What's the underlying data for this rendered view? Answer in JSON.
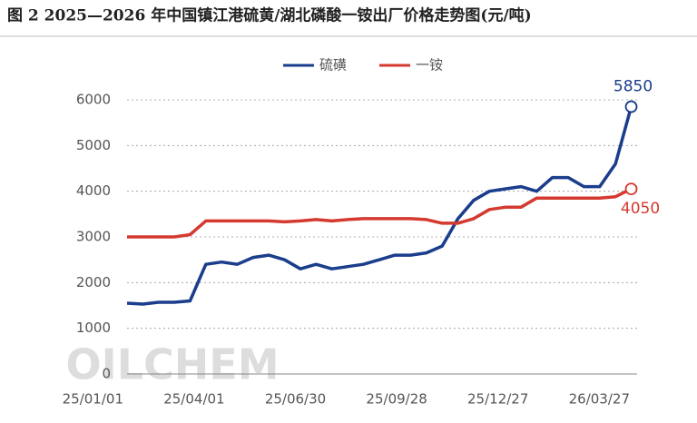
{
  "chart_data": {
    "type": "line",
    "title": "图 2 2025—2026 年中国镇江港硫黄/湖北磷酸一铵出厂价格走势图(元/吨)",
    "watermark": "OILCHEM",
    "x": [
      "25/01/01",
      "25/01/15",
      "25/01/29",
      "25/02/12",
      "25/02/26",
      "25/03/12",
      "25/03/26",
      "25/04/09",
      "25/04/23",
      "25/05/07",
      "25/05/21",
      "25/06/04",
      "25/06/18",
      "25/07/02",
      "25/07/16",
      "25/07/30",
      "25/08/13",
      "25/08/27",
      "25/09/10",
      "25/09/24",
      "25/10/08",
      "25/10/22",
      "25/11/05",
      "25/11/19",
      "25/12/03",
      "25/12/17",
      "25/12/31",
      "26/01/14",
      "26/01/28",
      "26/02/11",
      "26/02/25",
      "26/03/11",
      "26/03/25"
    ],
    "series": [
      {
        "name": "硫磺",
        "color": "#1a3d8c",
        "values": [
          1550,
          1530,
          1570,
          1570,
          1600,
          2400,
          2450,
          2400,
          2550,
          2600,
          2500,
          2300,
          2400,
          2300,
          2350,
          2400,
          2500,
          2600,
          2600,
          2650,
          2800,
          3400,
          3800,
          4000,
          4050,
          4100,
          4000,
          4300,
          4300,
          4100,
          4100,
          4600,
          5850
        ]
      },
      {
        "name": "一铵",
        "color": "#d43a2f",
        "values": [
          3000,
          3000,
          3000,
          3000,
          3050,
          3350,
          3350,
          3350,
          3350,
          3350,
          3330,
          3350,
          3380,
          3350,
          3380,
          3400,
          3400,
          3400,
          3400,
          3380,
          3300,
          3300,
          3400,
          3600,
          3650,
          3650,
          3850,
          3850,
          3850,
          3850,
          3850,
          3880,
          4050
        ]
      }
    ],
    "ylim": [
      0,
      6000
    ],
    "yticks": [
      0,
      1000,
      2000,
      3000,
      4000,
      5000,
      6000
    ],
    "xticks": [
      "25/01/01",
      "25/04/01",
      "25/06/30",
      "25/09/28",
      "25/12/27",
      "26/03/27"
    ],
    "legend": "top"
  }
}
